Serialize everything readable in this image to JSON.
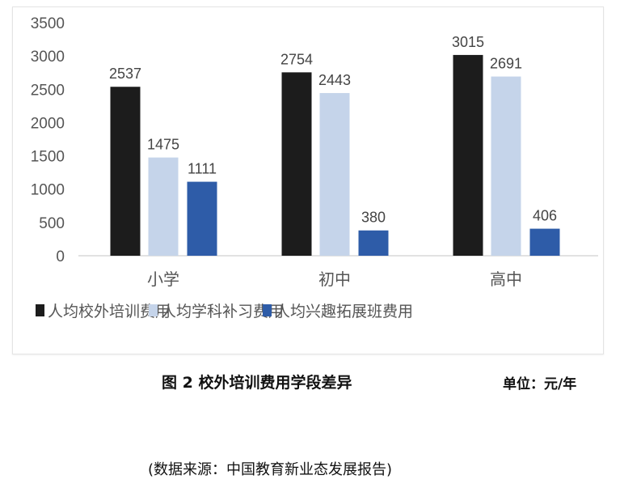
{
  "chart_data": {
    "type": "bar",
    "title": "",
    "xlabel": "",
    "ylabel": "",
    "categories": [
      "小学",
      "初中",
      "高中"
    ],
    "series": [
      {
        "name": "人均校外培训费用",
        "values": [
          2537,
          2754,
          3015
        ],
        "color": "#1c1c1c"
      },
      {
        "name": "人均学科补习费用",
        "values": [
          1475,
          2443,
          2691
        ],
        "color": "#c5d4ea"
      },
      {
        "name": "人均兴趣拓展班费用",
        "values": [
          1111,
          380,
          406
        ],
        "color": "#2e5ca8"
      }
    ],
    "ylim": [
      0,
      3500
    ],
    "yticks": [
      0,
      500,
      1000,
      1500,
      2000,
      2500,
      3000,
      3500
    ],
    "grid": false,
    "legend": "bottom",
    "data_labels": true
  },
  "caption": "图 2  校外培训费用学段差异",
  "unit": "单位：元/年",
  "source": "(数据来源：中国教育新业态发展报告)"
}
